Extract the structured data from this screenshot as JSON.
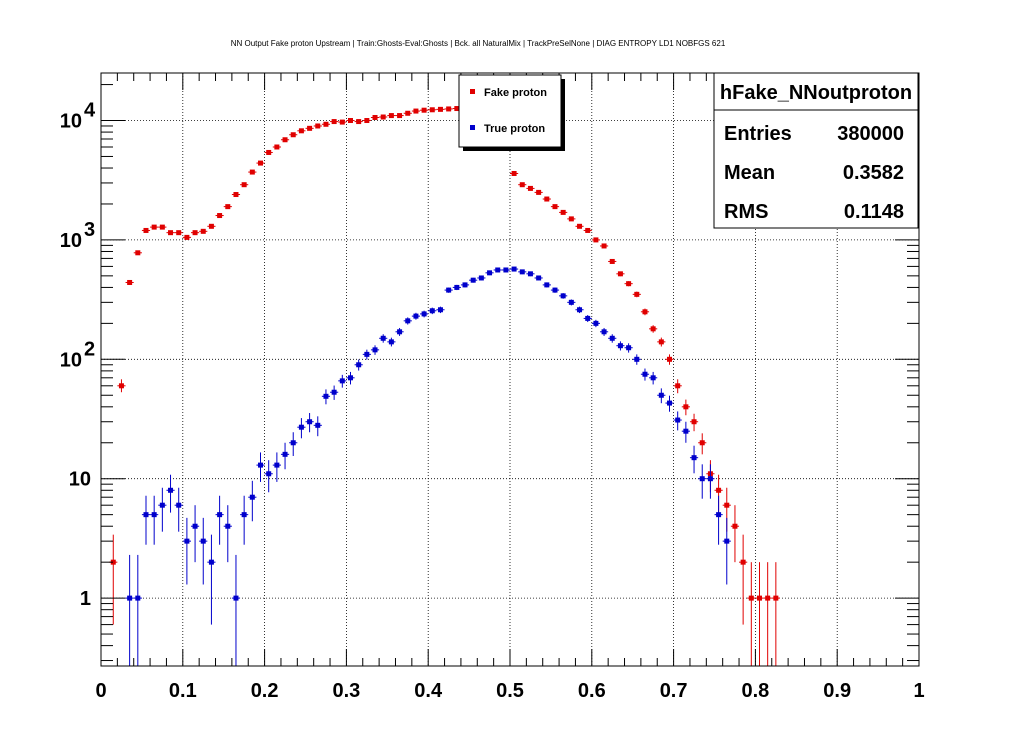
{
  "title": "NN Output Fake proton Upstream | Train:Ghosts-Eval:Ghosts | Bck. all NaturalMix | TrackPreSelNone | DIAG ENTROPY LD1 NOBFGS 621",
  "stats": {
    "name": "hFake_NNoutproton",
    "entries_label": "Entries",
    "entries": "380000",
    "mean_label": "Mean",
    "mean": "0.3582",
    "rms_label": "RMS",
    "rms": "0.1148"
  },
  "chart_data": {
    "type": "scatter",
    "xlim": [
      0,
      1
    ],
    "ylim": [
      0.27,
      25000
    ],
    "yscale": "log",
    "grid": true,
    "legend_position": "top-center",
    "x_ticks": [
      "0",
      "0.1",
      "0.2",
      "0.3",
      "0.4",
      "0.5",
      "0.6",
      "0.7",
      "0.8",
      "0.9",
      "1"
    ],
    "x_tick_values": [
      0,
      0.1,
      0.2,
      0.3,
      0.4,
      0.5,
      0.6,
      0.7,
      0.8,
      0.9,
      1
    ],
    "y_ticks": [
      {
        "value": 1,
        "label": "1"
      },
      {
        "value": 10,
        "label": "10"
      },
      {
        "value": 100,
        "label": "10",
        "exp": "2"
      },
      {
        "value": 1000,
        "label": "10",
        "exp": "3"
      },
      {
        "value": 10000,
        "label": "10",
        "exp": "4"
      }
    ],
    "series": [
      {
        "name": "Fake proton",
        "color": "#e00000",
        "x": [
          0.015,
          0.025,
          0.035,
          0.045,
          0.055,
          0.065,
          0.075,
          0.085,
          0.095,
          0.105,
          0.115,
          0.125,
          0.135,
          0.145,
          0.155,
          0.165,
          0.175,
          0.185,
          0.195,
          0.205,
          0.215,
          0.225,
          0.235,
          0.245,
          0.255,
          0.265,
          0.275,
          0.285,
          0.295,
          0.305,
          0.315,
          0.325,
          0.335,
          0.345,
          0.355,
          0.365,
          0.375,
          0.385,
          0.395,
          0.405,
          0.415,
          0.425,
          0.435,
          0.445,
          0.505,
          0.515,
          0.525,
          0.535,
          0.545,
          0.555,
          0.565,
          0.575,
          0.585,
          0.595,
          0.605,
          0.615,
          0.625,
          0.635,
          0.645,
          0.655,
          0.665,
          0.675,
          0.685,
          0.695,
          0.705,
          0.715,
          0.725,
          0.735,
          0.745,
          0.755,
          0.765,
          0.775,
          0.785,
          0.795,
          0.805,
          0.815,
          0.825
        ],
        "values": [
          2,
          60,
          440,
          780,
          1200,
          1280,
          1280,
          1150,
          1150,
          1050,
          1150,
          1180,
          1300,
          1600,
          1900,
          2400,
          2900,
          3700,
          4400,
          5400,
          6000,
          6900,
          7600,
          8200,
          8600,
          9000,
          9300,
          9800,
          9700,
          10000,
          9800,
          10000,
          10600,
          10700,
          11000,
          11000,
          11500,
          12000,
          12200,
          12300,
          12400,
          12500,
          12600,
          12700,
          3600,
          2900,
          2700,
          2500,
          2200,
          1900,
          1700,
          1500,
          1300,
          1200,
          1000,
          890,
          660,
          520,
          430,
          350,
          250,
          180,
          140,
          100,
          60,
          40,
          30,
          20,
          11,
          8,
          6,
          4,
          2,
          1,
          1,
          1,
          1
        ],
        "err_low": [
          1.4,
          7,
          21,
          28,
          35,
          36,
          36,
          34,
          34,
          32,
          34,
          34,
          36,
          40,
          44,
          49,
          54,
          61,
          66,
          73,
          77,
          83,
          87,
          91,
          93,
          95,
          96,
          99,
          98,
          100,
          99,
          100,
          103,
          103,
          105,
          105,
          107,
          110,
          110,
          111,
          111,
          112,
          112,
          113,
          60,
          54,
          52,
          50,
          47,
          44,
          41,
          39,
          36,
          35,
          32,
          30,
          26,
          23,
          21,
          19,
          16,
          13,
          12,
          10,
          8,
          6,
          5,
          4,
          3.3,
          2.8,
          2.4,
          2,
          1.4,
          1,
          1,
          1,
          1
        ],
        "err_high": [
          1.4,
          8,
          21,
          28,
          35,
          36,
          36,
          34,
          34,
          32,
          34,
          34,
          36,
          40,
          44,
          49,
          54,
          61,
          66,
          73,
          77,
          83,
          87,
          91,
          93,
          95,
          96,
          99,
          98,
          100,
          99,
          100,
          103,
          103,
          105,
          105,
          107,
          110,
          110,
          111,
          111,
          112,
          112,
          113,
          60,
          54,
          52,
          50,
          47,
          44,
          41,
          39,
          36,
          35,
          32,
          30,
          26,
          23,
          21,
          19,
          16,
          13,
          12,
          10,
          8,
          6,
          5,
          4,
          3.3,
          2.8,
          2.4,
          2,
          1.4,
          1,
          1,
          1,
          1
        ]
      },
      {
        "name": "True proton",
        "color": "#0000cc",
        "x": [
          0.035,
          0.045,
          0.055,
          0.065,
          0.075,
          0.085,
          0.095,
          0.105,
          0.115,
          0.125,
          0.135,
          0.145,
          0.155,
          0.165,
          0.175,
          0.185,
          0.195,
          0.205,
          0.215,
          0.225,
          0.235,
          0.245,
          0.255,
          0.265,
          0.275,
          0.285,
          0.295,
          0.305,
          0.315,
          0.325,
          0.335,
          0.345,
          0.355,
          0.365,
          0.375,
          0.385,
          0.395,
          0.405,
          0.415,
          0.425,
          0.435,
          0.445,
          0.455,
          0.465,
          0.475,
          0.485,
          0.495,
          0.505,
          0.515,
          0.525,
          0.535,
          0.545,
          0.555,
          0.565,
          0.575,
          0.585,
          0.595,
          0.605,
          0.615,
          0.625,
          0.635,
          0.645,
          0.655,
          0.665,
          0.675,
          0.685,
          0.695,
          0.705,
          0.715,
          0.725,
          0.735,
          0.745,
          0.755,
          0.765
        ],
        "values": [
          1,
          1,
          5,
          5,
          6,
          8,
          6,
          3,
          4,
          3,
          2,
          5,
          4,
          1,
          5,
          7,
          13,
          11,
          13,
          16,
          20,
          27,
          30,
          28,
          49,
          53,
          66,
          70,
          90,
          110,
          120,
          150,
          140,
          170,
          210,
          230,
          240,
          255,
          260,
          380,
          400,
          420,
          460,
          480,
          530,
          560,
          560,
          570,
          540,
          520,
          480,
          420,
          380,
          340,
          300,
          260,
          220,
          200,
          170,
          150,
          130,
          125,
          100,
          75,
          70,
          50,
          43,
          31,
          25,
          15,
          10,
          10,
          5,
          3
        ],
        "err_low": [
          0.8,
          0.8,
          2.2,
          2.2,
          2.4,
          2.8,
          2.4,
          1.7,
          2,
          1.7,
          1.4,
          2.2,
          2,
          0.8,
          2.2,
          2.6,
          3.6,
          3.3,
          3.6,
          4,
          4.5,
          5.2,
          5.5,
          5.3,
          7,
          7.3,
          8.1,
          8.4,
          9.5,
          10.5,
          11,
          12.2,
          11.8,
          13,
          14.5,
          15.2,
          15.5,
          16,
          16.1,
          19.5,
          20,
          20.5,
          21.4,
          21.9,
          23,
          23.7,
          23.7,
          23.9,
          23.2,
          22.8,
          21.9,
          20.5,
          19.5,
          18.4,
          17.3,
          16.1,
          14.8,
          14.1,
          13,
          12.2,
          11.4,
          11.2,
          10,
          8.7,
          8.4,
          7.1,
          6.6,
          5.6,
          5,
          3.9,
          3.2,
          3.2,
          2.2,
          1.7
        ],
        "err_high": [
          1.3,
          1.3,
          2.2,
          2.2,
          2.4,
          2.8,
          2.4,
          1.7,
          2,
          1.7,
          1.4,
          2.2,
          2,
          1.3,
          2.2,
          2.6,
          3.6,
          3.3,
          3.6,
          4,
          4.5,
          5.2,
          5.5,
          5.3,
          7,
          7.3,
          8.1,
          8.4,
          9.5,
          10.5,
          11,
          12.2,
          11.8,
          13,
          14.5,
          15.2,
          15.5,
          16,
          16.1,
          19.5,
          20,
          20.5,
          21.4,
          21.9,
          23,
          23.7,
          23.7,
          23.9,
          23.2,
          22.8,
          21.9,
          20.5,
          19.5,
          18.4,
          17.3,
          16.1,
          14.8,
          14.1,
          13,
          12.2,
          11.4,
          11.2,
          10,
          8.7,
          8.4,
          7.1,
          6.6,
          5.6,
          5,
          3.9,
          3.2,
          3.2,
          2.2,
          1.7
        ]
      }
    ]
  }
}
